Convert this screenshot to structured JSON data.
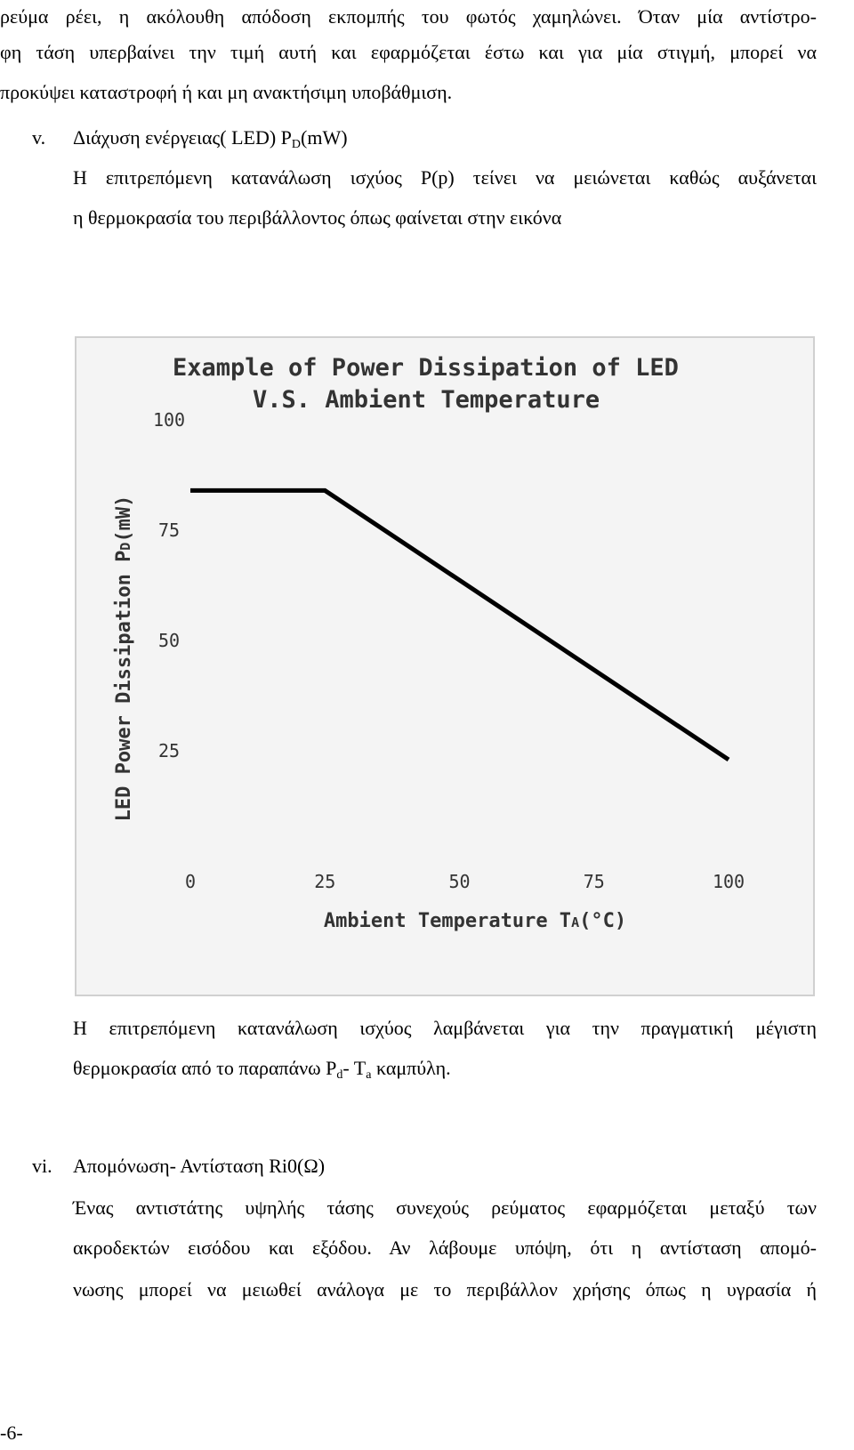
{
  "paragraph_top": {
    "lines": [
      "ρεύμα ρέει, η ακόλουθη απόδοση εκπομπής του φωτός χαμηλώνει. Όταν μία αντίστρο-",
      "φη τάση υπερβαίνει την τιμή αυτή και εφαρμόζεται έστω και για μία στιγμή, μπορεί να",
      "προκύψει καταστροφή ή και μη ανακτήσιμη υποβάθμιση."
    ]
  },
  "section_v": {
    "number": "v.",
    "heading_text": "Διάχυση ενέργειας( LED)  P",
    "heading_sub": "D",
    "heading_tail": "(mW)",
    "lines": [
      "Η επιτρεπόμενη κατανάλωση ισχύος P(p) τείνει να μειώνεται καθώς αυξάνεται",
      "η θερμοκρασία του περιβάλλοντος όπως φαίνεται στην εικόνα"
    ]
  },
  "chart_data": {
    "type": "line",
    "title": "Example of Power Dissipation of LED",
    "subtitle": "V.S. Ambient Temperature",
    "ylabel": "LED Power Dissipation P",
    "ylabel_sub": "D",
    "ylabel_tail": "(mW)",
    "xlabel": "Ambient Temperature T",
    "xlabel_sub": "A",
    "xlabel_tail": "(°C)",
    "xlim": [
      0,
      100
    ],
    "ylim": [
      0,
      100
    ],
    "xticks": [
      "0",
      "25",
      "50",
      "75",
      "100"
    ],
    "yticks": [
      "100",
      "75",
      "50",
      "25"
    ],
    "x": [
      0,
      25,
      100
    ],
    "y": [
      84,
      84,
      23
    ],
    "grid": false,
    "line_color": "#000000",
    "background": "#f4f4f4"
  },
  "caption_paragraph": {
    "line1": "Η επιτρεπόμενη κατανάλωση ισχύος λαμβάνεται για την πραγματική μέγιστη",
    "line2_a": "θερμοκρασία από το παραπάνω P",
    "line2_sub1": "d",
    "line2_b": "- T",
    "line2_sub2": "a",
    "line2_c": " καμπύλη."
  },
  "section_vi": {
    "number": "vi.",
    "heading": "Απομόνωση- Αντίσταση Ri0(Ω)",
    "lines": [
      "Ένας αντιστάτης υψηλής τάσης συνεχούς ρεύματος εφαρμόζεται μεταξύ των",
      "ακροδεκτών εισόδου και εξόδου. Αν λάβουμε υπόψη,  ότι η αντίσταση απομό-",
      "νωσης μπορεί να μειωθεί ανάλογα με το περιβάλλον χρήσης όπως η υγρασία ή"
    ]
  },
  "page_number": "-6-"
}
